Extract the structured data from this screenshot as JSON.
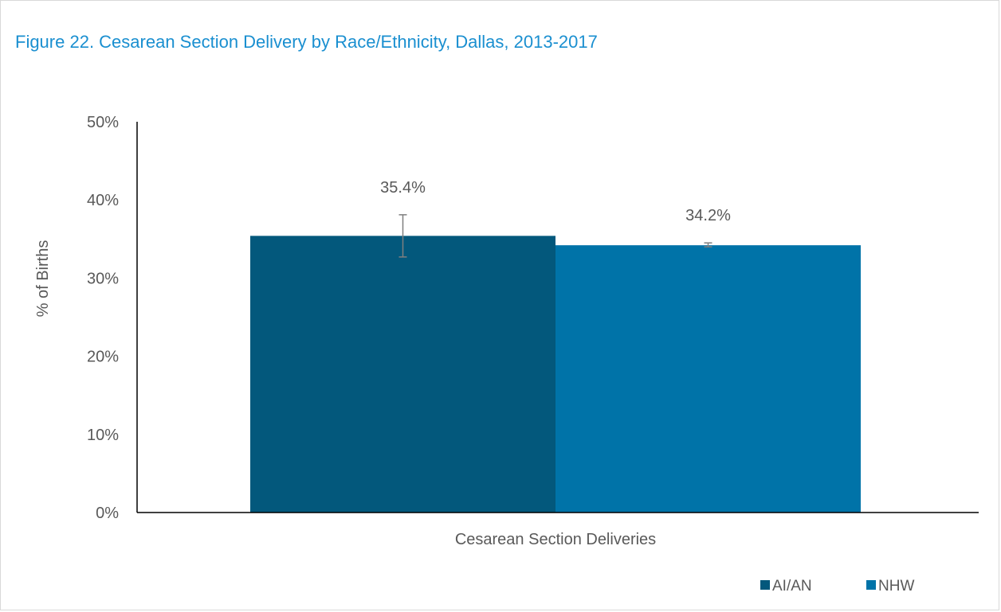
{
  "chart_data": {
    "type": "bar",
    "title": "Figure 22. Cesarean Section Delivery by Race/Ethnicity, Dallas, 2013-2017",
    "xlabel": "",
    "ylabel": "% of Births",
    "categories": [
      "Cesarean Section Deliveries"
    ],
    "series": [
      {
        "name": "AI/AN",
        "values": [
          35.4
        ],
        "data_labels": [
          "35.4%"
        ],
        "error_low": [
          32.7
        ],
        "error_high": [
          38.1
        ],
        "color": "#03587c"
      },
      {
        "name": "NHW",
        "values": [
          34.2
        ],
        "data_labels": [
          "34.2%"
        ],
        "error_low": [
          34.0
        ],
        "error_high": [
          34.5
        ],
        "color": "#0073a8"
      }
    ],
    "ylim": [
      0,
      50
    ],
    "yticks": [
      0,
      10,
      20,
      30,
      40,
      50
    ],
    "ytick_labels": [
      "0%",
      "10%",
      "20%",
      "30%",
      "40%",
      "50%"
    ],
    "grid": false,
    "legend": "bottom-right",
    "colors": {
      "title": "#1a8fd0",
      "text": "#595959",
      "axis": "#000000",
      "error_bar": "#7f7f7f"
    }
  }
}
